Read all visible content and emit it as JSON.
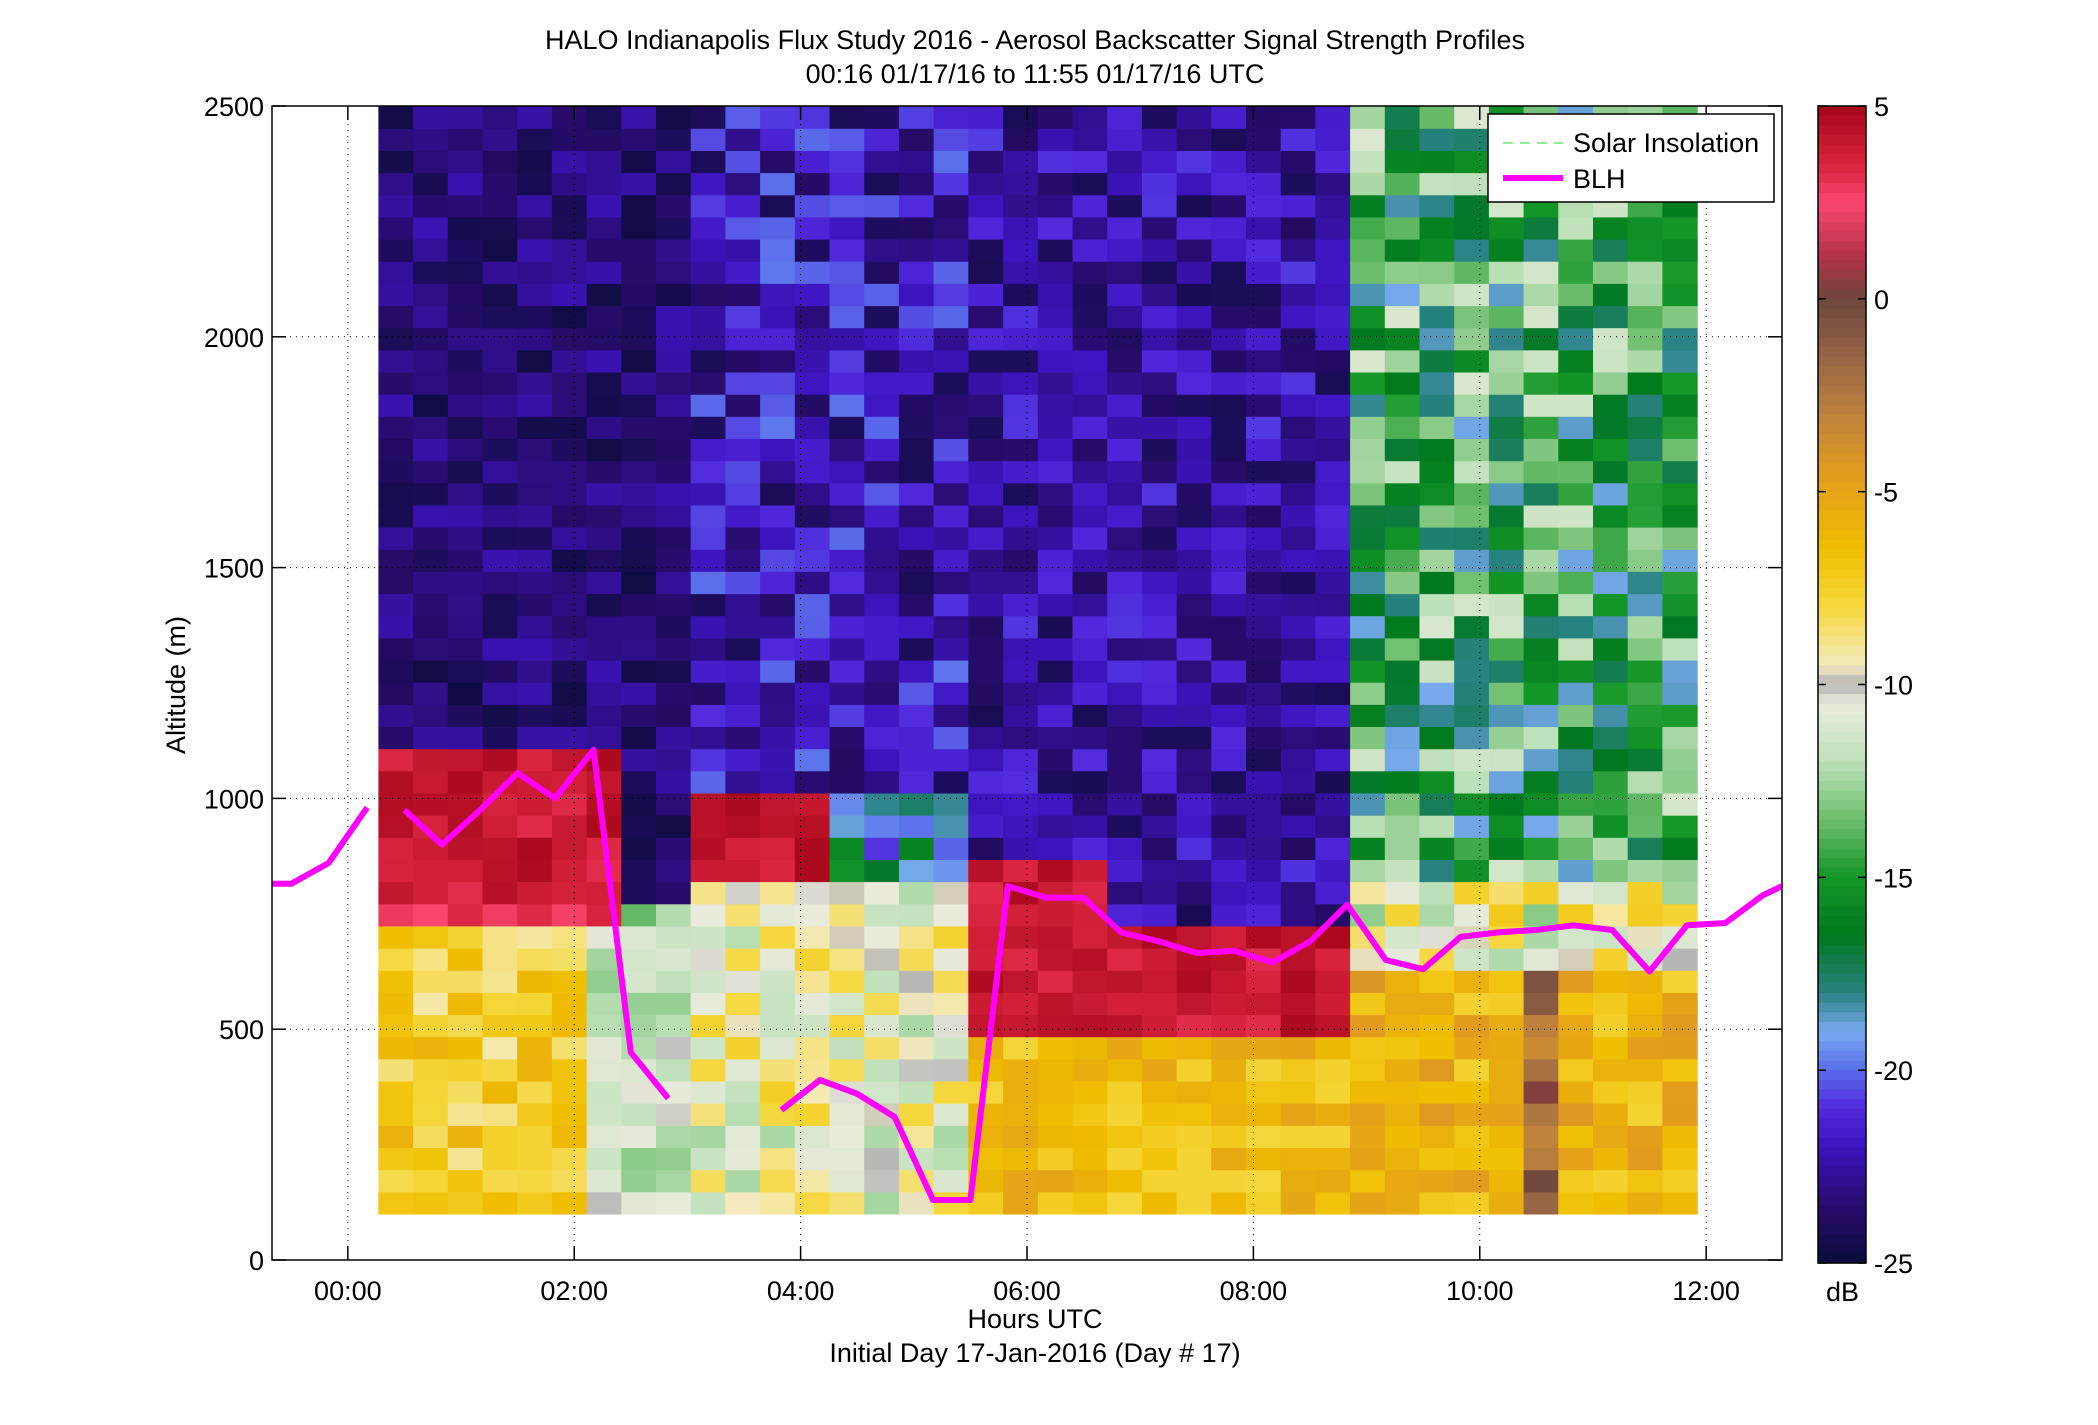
{
  "chart_data": {
    "type": "heatmap",
    "title": "HALO Indianapolis Flux Study 2016 - Aerosol Backscatter Signal Strength Profiles",
    "subtitle": "00:16 01/17/16 to 11:55 01/17/16  UTC",
    "xlabel": "Hours UTC",
    "xlabel2": "Initial Day 17-Jan-2016 (Day # 17)",
    "ylabel": "Altitude (m)",
    "xlim": [
      -0.67,
      12.67
    ],
    "ylim": [
      0,
      2500
    ],
    "x_ticks": [
      0,
      2,
      4,
      6,
      8,
      10,
      12
    ],
    "x_tick_labels": [
      "00:00",
      "02:00",
      "04:00",
      "06:00",
      "08:00",
      "10:00",
      "12:00"
    ],
    "y_ticks": [
      0,
      500,
      1000,
      1500,
      2000,
      2500
    ],
    "y_tick_labels": [
      "0",
      "500",
      "1000",
      "1500",
      "2000",
      "2500"
    ],
    "grid": true,
    "colorbar": {
      "label": "dB",
      "range": [
        -25,
        5
      ],
      "ticks": [
        5,
        0,
        -5,
        -10,
        -15,
        -20,
        -25
      ],
      "tick_labels": [
        "5",
        "0",
        "-5",
        "-10",
        "-15",
        "-20",
        "-25"
      ],
      "colormap": "purple-blue-green-white-yellow-brown-red"
    },
    "legend": {
      "placement": "top-right",
      "entries": [
        {
          "label": "Solar Insolation",
          "color": "#90ee90",
          "style": "dashed"
        },
        {
          "label": "BLH",
          "color": "#ff00ff",
          "style": "solid"
        }
      ]
    },
    "heatmap": {
      "time_start_hours": 0.27,
      "time_end_hours": 11.92,
      "altitude_range_m": [
        100,
        2500
      ],
      "description_regimes": [
        {
          "hours": [
            0.27,
            3.0
          ],
          "near_surface": "yellow/white",
          "mid_layer_0.8_1.05km": "red",
          "aloft": "purple"
        },
        {
          "hours": [
            3.0,
            5.5
          ],
          "near_surface": "white/green",
          "aloft": "purple/blue"
        },
        {
          "hours": [
            5.5,
            8.9
          ],
          "near_surface": "yellow",
          "mid_layer_0.5_0.8km": "red",
          "aloft": "purple"
        },
        {
          "hours": [
            8.9,
            11.92
          ],
          "near_surface": "yellow/orange",
          "aloft": "green/blue"
        }
      ]
    },
    "series": [
      {
        "name": "BLH",
        "segments": [
          {
            "x": [
              -0.67,
              -0.5,
              -0.17,
              0.17
            ],
            "y": [
              815,
              815,
              860,
              980
            ]
          },
          {
            "x": [
              0.5,
              0.83,
              1.17,
              1.5,
              1.83,
              2.17,
              2.5,
              2.83
            ],
            "y": [
              975,
              900,
              975,
              1055,
              1000,
              1105,
              450,
              350
            ]
          },
          {
            "x": [
              3.83,
              4.17,
              4.5,
              4.83,
              5.17,
              5.5,
              5.83,
              6.17,
              6.5,
              6.83,
              7.17,
              7.5,
              7.83,
              8.17,
              8.5,
              8.83,
              9.17,
              9.5,
              9.83,
              10.17,
              10.5,
              10.83,
              11.17,
              11.5,
              11.83,
              12.17,
              12.5,
              12.67
            ],
            "y": [
              325,
              390,
              360,
              310,
              130,
              130,
              810,
              785,
              785,
              710,
              690,
              665,
              670,
              645,
              690,
              770,
              650,
              630,
              700,
              710,
              715,
              725,
              715,
              625,
              725,
              730,
              790,
              810
            ]
          }
        ]
      }
    ]
  }
}
